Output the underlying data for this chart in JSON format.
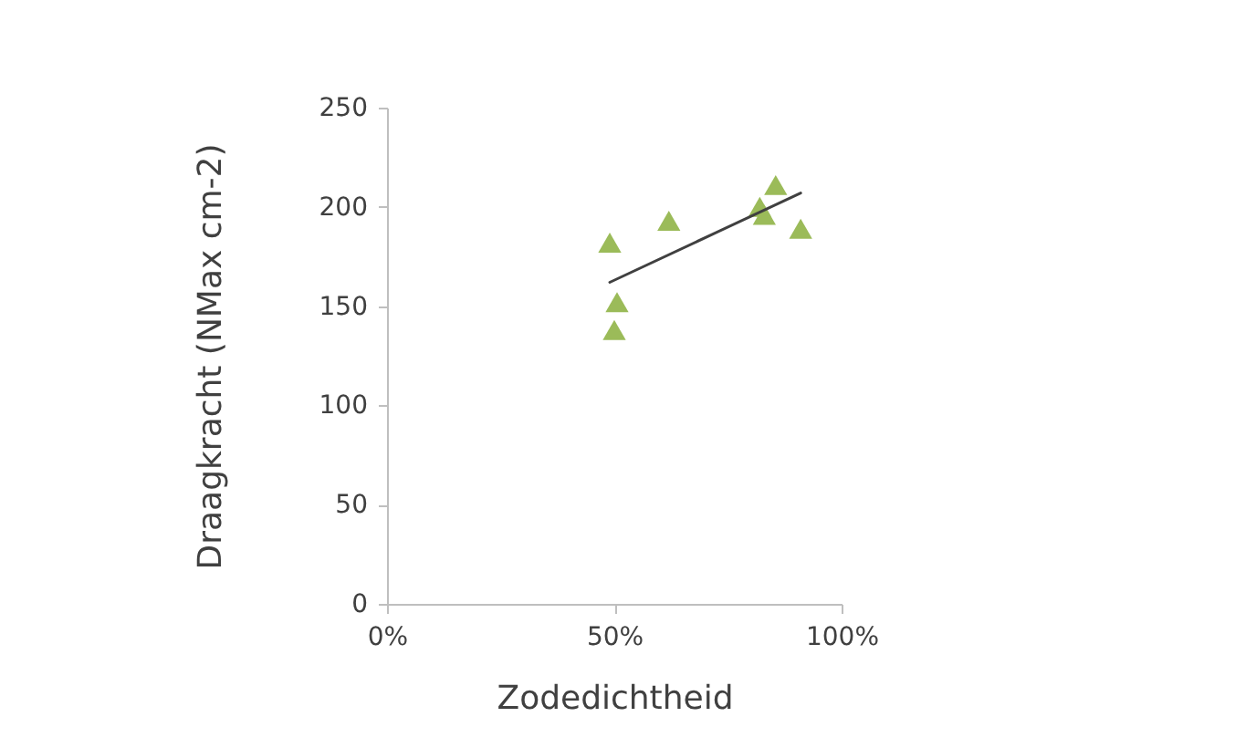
{
  "chart_data": {
    "type": "scatter",
    "xlabel": "Zodedichtheid",
    "ylabel": "Draagkracht (NMax cm-2)",
    "xlim": [
      0,
      100
    ],
    "xticks": [
      {
        "value": 0,
        "label": "0%"
      },
      {
        "value": 50,
        "label": "50%"
      },
      {
        "value": 100,
        "label": "100%"
      }
    ],
    "ylim": [
      0,
      250
    ],
    "yticks": [
      0,
      50,
      100,
      150,
      200,
      250
    ],
    "grid": false,
    "marker": "triangle",
    "series": [
      {
        "color": "#9bbb59",
        "x": [
          49,
          50.6,
          50,
          62,
          82,
          83,
          85.5,
          91
        ],
        "values": [
          182,
          152,
          138,
          193,
          200,
          196,
          211,
          189
        ]
      },
      {
        "type": "line",
        "marker": "none",
        "color": "#404040",
        "x": [
          49,
          91
        ],
        "values": [
          162,
          207
        ]
      }
    ]
  }
}
